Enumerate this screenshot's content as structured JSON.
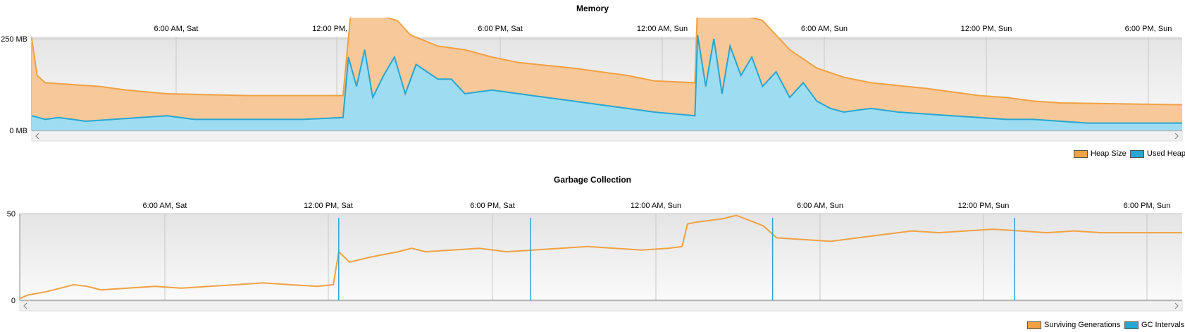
{
  "colors": {
    "heap_fill": "#f7c89a",
    "heap_line": "#f0a143",
    "used_fill": "#9edcf2",
    "used_line": "#26a7d1",
    "gc_line": "#f0a143",
    "interval_line": "#26a7d1"
  },
  "chart_data": [
    {
      "type": "area",
      "title": "Memory",
      "time_ticks": [
        "6:00 AM, Sat",
        "12:00 PM, Sat",
        "6:00 PM, Sat",
        "12:00 AM, Sun",
        "6:00 AM, Sun",
        "12:00 PM, Sun",
        "6:00 PM, Sun"
      ],
      "y_ticks": [
        {
          "value": 0,
          "label": "0 MB"
        },
        {
          "value": 250,
          "label": "250 MB"
        }
      ],
      "x_unit": "hours since 0:45 AM, Sat",
      "xlim": [
        0,
        42.5
      ],
      "ylim": [
        0,
        400
      ],
      "legend_position": "bottom-right",
      "grid": true,
      "series": [
        {
          "name": "Heap Size",
          "points": [
            [
              0,
              250
            ],
            [
              0.2,
              150
            ],
            [
              0.5,
              130
            ],
            [
              1.5,
              125
            ],
            [
              2.5,
              120
            ],
            [
              3.5,
              110
            ],
            [
              5,
              100
            ],
            [
              8,
              95
            ],
            [
              11.5,
              95
            ],
            [
              11.8,
              330
            ],
            [
              12,
              350
            ],
            [
              12.2,
              330
            ],
            [
              13,
              310
            ],
            [
              13.5,
              300
            ],
            [
              14,
              260
            ],
            [
              15,
              230
            ],
            [
              16,
              220
            ],
            [
              17,
              200
            ],
            [
              18,
              185
            ],
            [
              20,
              170
            ],
            [
              22,
              150
            ],
            [
              23,
              135
            ],
            [
              24.5,
              130
            ],
            [
              24.6,
              350
            ],
            [
              24.8,
              370
            ],
            [
              25,
              330
            ],
            [
              26,
              320
            ],
            [
              27,
              300
            ],
            [
              27.5,
              260
            ],
            [
              28,
              220
            ],
            [
              29,
              170
            ],
            [
              30,
              145
            ],
            [
              31,
              130
            ],
            [
              33,
              115
            ],
            [
              35,
              95
            ],
            [
              36,
              90
            ],
            [
              37,
              80
            ],
            [
              38,
              75
            ],
            [
              42.5,
              70
            ]
          ]
        },
        {
          "name": "Used Heap",
          "points": [
            [
              0,
              40
            ],
            [
              0.5,
              30
            ],
            [
              1,
              35
            ],
            [
              2,
              25
            ],
            [
              3,
              30
            ],
            [
              4,
              35
            ],
            [
              5,
              40
            ],
            [
              6,
              30
            ],
            [
              8,
              30
            ],
            [
              10,
              30
            ],
            [
              11.5,
              35
            ],
            [
              11.7,
              200
            ],
            [
              12,
              120
            ],
            [
              12.3,
              220
            ],
            [
              12.6,
              90
            ],
            [
              13,
              150
            ],
            [
              13.4,
              200
            ],
            [
              13.8,
              100
            ],
            [
              14.2,
              180
            ],
            [
              14.6,
              160
            ],
            [
              15,
              140
            ],
            [
              15.5,
              140
            ],
            [
              16,
              100
            ],
            [
              17,
              110
            ],
            [
              18,
              100
            ],
            [
              19,
              90
            ],
            [
              20,
              80
            ],
            [
              21,
              70
            ],
            [
              22,
              60
            ],
            [
              23,
              50
            ],
            [
              24.5,
              40
            ],
            [
              24.6,
              260
            ],
            [
              24.9,
              120
            ],
            [
              25.2,
              250
            ],
            [
              25.5,
              100
            ],
            [
              25.8,
              230
            ],
            [
              26.2,
              150
            ],
            [
              26.6,
              200
            ],
            [
              27,
              120
            ],
            [
              27.5,
              160
            ],
            [
              28,
              90
            ],
            [
              28.5,
              130
            ],
            [
              29,
              80
            ],
            [
              29.5,
              60
            ],
            [
              30,
              50
            ],
            [
              31,
              60
            ],
            [
              32,
              50
            ],
            [
              33,
              45
            ],
            [
              34,
              40
            ],
            [
              35,
              35
            ],
            [
              36,
              30
            ],
            [
              37,
              30
            ],
            [
              38,
              25
            ],
            [
              39,
              20
            ],
            [
              42.5,
              20
            ]
          ]
        }
      ]
    },
    {
      "type": "line",
      "title": "Garbage Collection",
      "time_ticks": [
        "6:00 AM, Sat",
        "12:00 PM, Sat",
        "6:00 PM, Sat",
        "12:00 AM, Sun",
        "6:00 AM, Sun",
        "12:00 PM, Sun",
        "6:00 PM, Sun"
      ],
      "y_ticks": [
        {
          "value": 0,
          "label": "0"
        },
        {
          "value": 50,
          "label": "50"
        }
      ],
      "x_unit": "hours since 0:15 AM, Sat",
      "xlim": [
        0,
        43
      ],
      "ylim": [
        0,
        50
      ],
      "legend_position": "bottom-right",
      "grid": true,
      "series": [
        {
          "name": "Surviving Generations",
          "points": [
            [
              0,
              1
            ],
            [
              0.3,
              3
            ],
            [
              1,
              5
            ],
            [
              1.5,
              7
            ],
            [
              2,
              9
            ],
            [
              2.5,
              8
            ],
            [
              3,
              6
            ],
            [
              4,
              7
            ],
            [
              5,
              8
            ],
            [
              6,
              7
            ],
            [
              7,
              8
            ],
            [
              8,
              9
            ],
            [
              9,
              10
            ],
            [
              10,
              9
            ],
            [
              11,
              8
            ],
            [
              11.6,
              9
            ],
            [
              11.8,
              28
            ],
            [
              12.2,
              22
            ],
            [
              13,
              25
            ],
            [
              14,
              28
            ],
            [
              14.5,
              30
            ],
            [
              15,
              28
            ],
            [
              16,
              29
            ],
            [
              17,
              30
            ],
            [
              18,
              28
            ],
            [
              19,
              29
            ],
            [
              20,
              30
            ],
            [
              21,
              31
            ],
            [
              22,
              30
            ],
            [
              23,
              29
            ],
            [
              24,
              30
            ],
            [
              24.5,
              31
            ],
            [
              24.7,
              44
            ],
            [
              25,
              45
            ],
            [
              26,
              47
            ],
            [
              26.5,
              49
            ],
            [
              27,
              46
            ],
            [
              27.5,
              43
            ],
            [
              28,
              36
            ],
            [
              29,
              35
            ],
            [
              30,
              34
            ],
            [
              31,
              36
            ],
            [
              32,
              38
            ],
            [
              33,
              40
            ],
            [
              34,
              39
            ],
            [
              35,
              40
            ],
            [
              36,
              41
            ],
            [
              37,
              40
            ],
            [
              38,
              39
            ],
            [
              39,
              40
            ],
            [
              40,
              39
            ],
            [
              43,
              39
            ]
          ]
        },
        {
          "name": "GC Intervals",
          "intervals": [
            11.8,
            18.9,
            27.85,
            36.8
          ]
        }
      ]
    }
  ]
}
